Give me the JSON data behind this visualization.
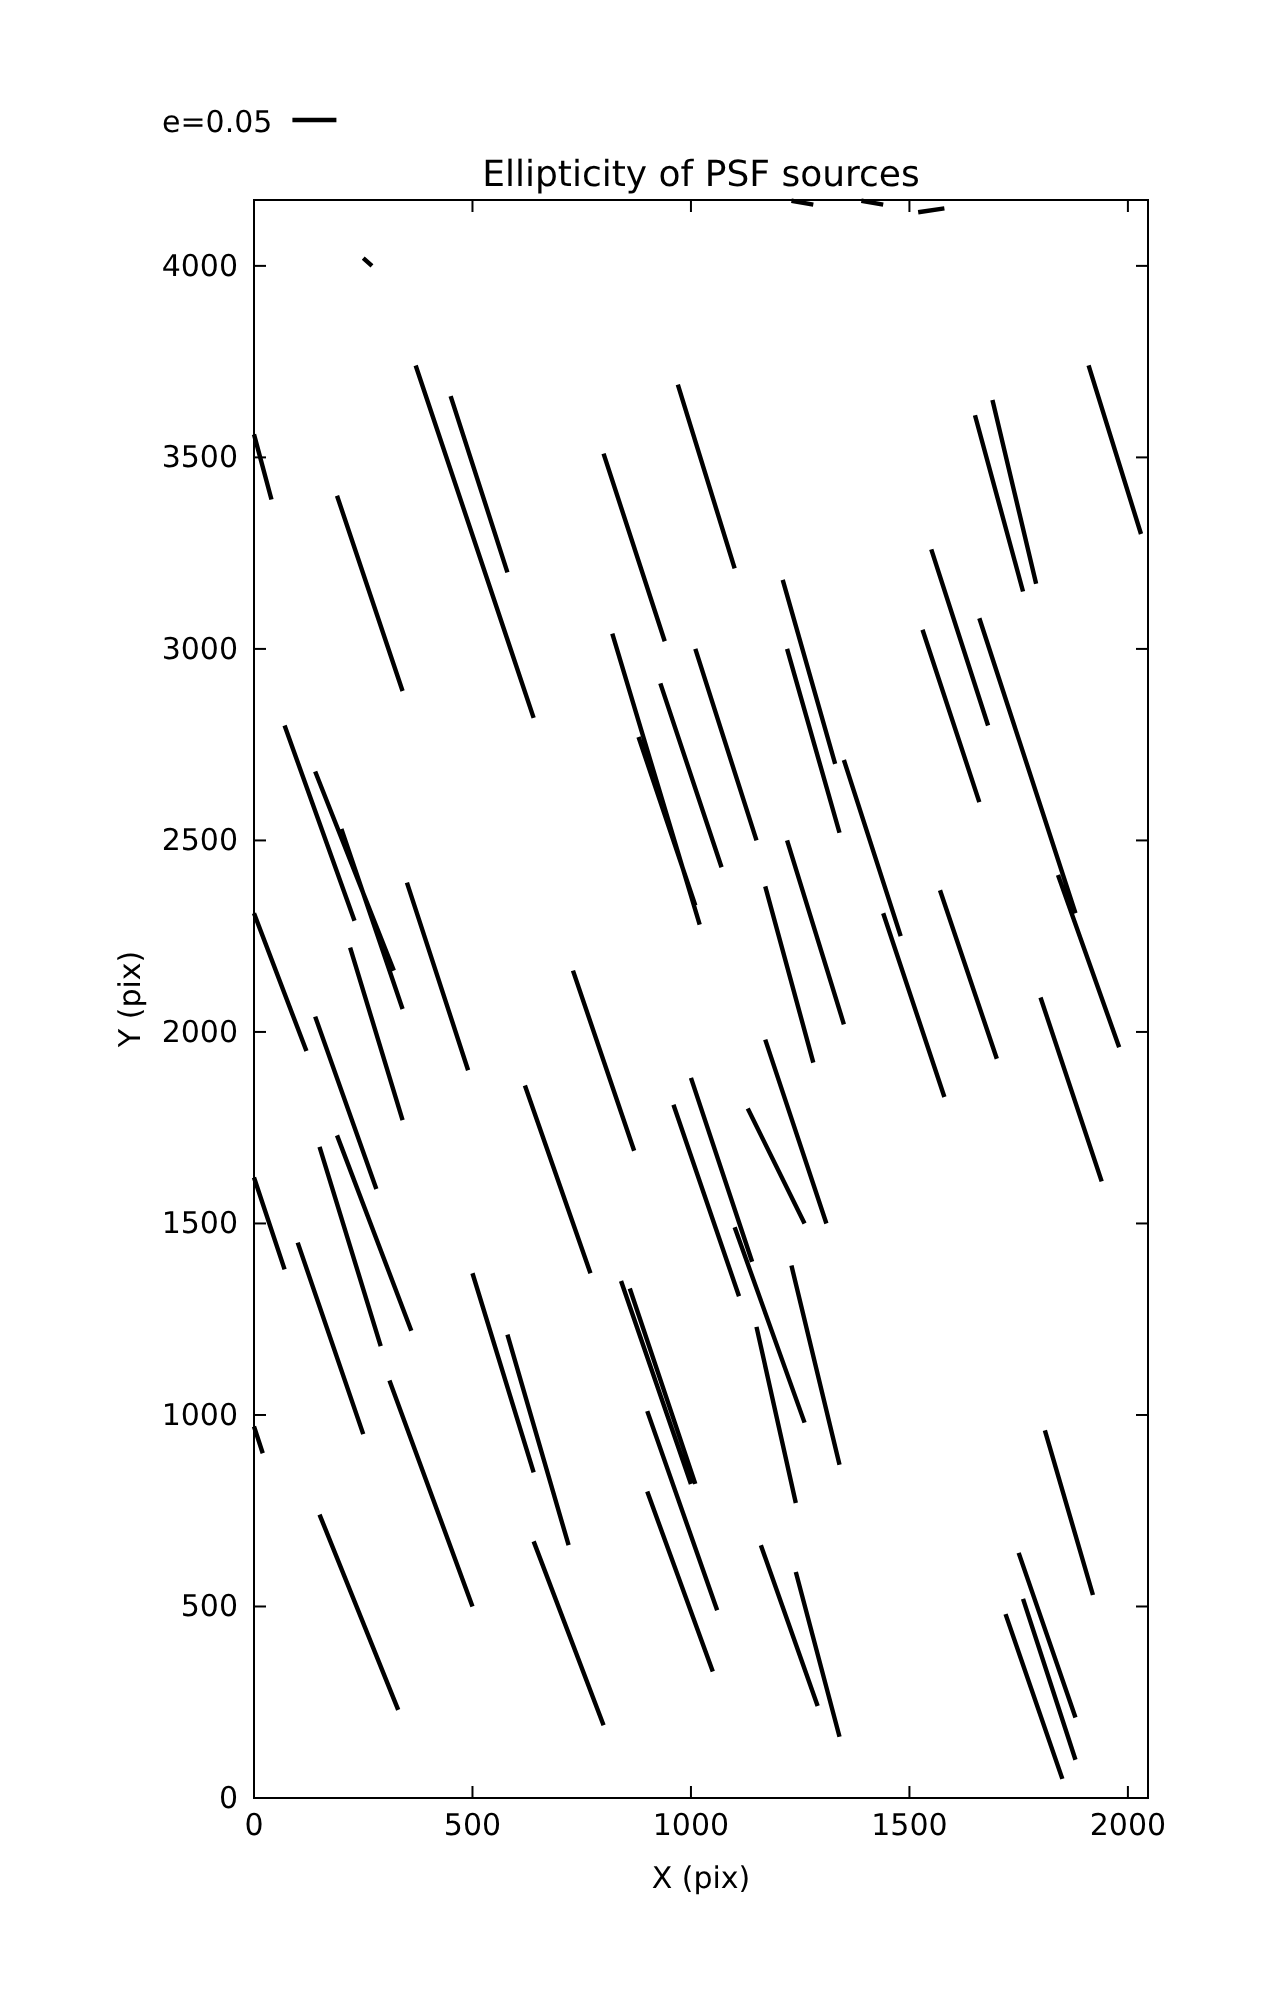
{
  "chart_data": {
    "type": "line",
    "title": "Ellipticity of PSF sources",
    "xlabel": "X (pix)",
    "ylabel": "Y (pix)",
    "xlim": [
      0,
      2046
    ],
    "ylim": [
      0,
      4172
    ],
    "xticks": [
      0,
      500,
      1000,
      1500,
      2000
    ],
    "yticks": [
      0,
      500,
      1000,
      1500,
      2000,
      2500,
      3000,
      3500,
      4000
    ],
    "grid": false,
    "legend": "top left",
    "marker": "none",
    "line_style": "solid",
    "series": [
      {
        "name": "e=0.05",
        "color": "#000000",
        "x": [
          0,
          40,
          null,
          250,
          270,
          null,
          190,
          340,
          null,
          370,
          640,
          null,
          450,
          580,
          null,
          800,
          940,
          null,
          970,
          1100,
          null,
          1210,
          1330,
          null,
          1550,
          1680,
          null,
          1650,
          1760,
          null,
          1690,
          1790,
          null,
          1910,
          2030,
          null,
          1230,
          1280,
          null,
          1390,
          1440,
          null,
          1520,
          1580,
          null,
          70,
          230,
          null,
          140,
          320,
          null,
          200,
          340,
          null,
          0,
          120,
          null,
          350,
          490,
          null,
          820,
          1020,
          null,
          1010,
          1150,
          null,
          930,
          1070,
          null,
          880,
          1010,
          null,
          1220,
          1340,
          null,
          1350,
          1480,
          null,
          1530,
          1660,
          null,
          1660,
          1880,
          null,
          1840,
          1980,
          null,
          1170,
          1280,
          null,
          1220,
          1350,
          null,
          1440,
          1580,
          null,
          1570,
          1700,
          null,
          1800,
          1940,
          null,
          730,
          870,
          null,
          220,
          340,
          null,
          140,
          280,
          null,
          0,
          70,
          null,
          150,
          290,
          null,
          190,
          360,
          null,
          100,
          250,
          null,
          620,
          770,
          null,
          960,
          1110,
          null,
          1000,
          1140,
          null,
          1130,
          1260,
          null,
          1170,
          1310,
          null,
          1100,
          1260,
          null,
          1230,
          1340,
          null,
          500,
          640,
          null,
          580,
          720,
          null,
          860,
          1010,
          null,
          840,
          1000,
          null,
          310,
          500,
          null,
          0,
          20,
          null,
          900,
          1060,
          null,
          900,
          1050,
          null,
          640,
          800,
          null,
          150,
          330,
          null,
          1160,
          1290,
          null,
          1240,
          1340,
          null,
          1810,
          1920,
          null,
          1750,
          1880,
          null,
          1760,
          1880,
          null,
          1720,
          1850,
          null,
          1150,
          1240
        ],
        "values": [
          3560,
          3390,
          null,
          4020,
          4000,
          null,
          3400,
          2890,
          null,
          3740,
          2820,
          null,
          3660,
          3200,
          null,
          3510,
          3020,
          null,
          3690,
          3210,
          null,
          3180,
          2700,
          null,
          3260,
          2800,
          null,
          3610,
          3150,
          null,
          3650,
          3170,
          null,
          3740,
          3300,
          null,
          4170,
          4160,
          null,
          4170,
          4160,
          null,
          4140,
          4150,
          null,
          2800,
          2290,
          null,
          2680,
          2160,
          null,
          2530,
          2060,
          null,
          2310,
          1950,
          null,
          2390,
          1900,
          null,
          3040,
          2280,
          null,
          3000,
          2500,
          null,
          2910,
          2430,
          null,
          2770,
          2330,
          null,
          3000,
          2520,
          null,
          2710,
          2250,
          null,
          3050,
          2600,
          null,
          3080,
          2310,
          null,
          2410,
          1960,
          null,
          2380,
          1920,
          null,
          2500,
          2020,
          null,
          2310,
          1830,
          null,
          2370,
          1930,
          null,
          2090,
          1610,
          null,
          2160,
          1690,
          null,
          2220,
          1770,
          null,
          2040,
          1590,
          null,
          1620,
          1380,
          null,
          1700,
          1180,
          null,
          1730,
          1220,
          null,
          1450,
          950,
          null,
          1860,
          1370,
          null,
          1810,
          1310,
          null,
          1880,
          1400,
          null,
          1800,
          1500,
          null,
          1980,
          1500,
          null,
          1490,
          980,
          null,
          1390,
          870,
          null,
          1370,
          850,
          null,
          1210,
          660,
          null,
          1330,
          820,
          null,
          1350,
          820,
          null,
          1090,
          500,
          null,
          970,
          900,
          null,
          1010,
          490,
          null,
          800,
          330,
          null,
          670,
          190,
          null,
          740,
          230,
          null,
          660,
          240,
          null,
          590,
          160,
          null,
          960,
          530,
          null,
          640,
          210,
          null,
          520,
          100,
          null,
          480,
          50,
          null,
          1230,
          770
        ]
      }
    ]
  }
}
